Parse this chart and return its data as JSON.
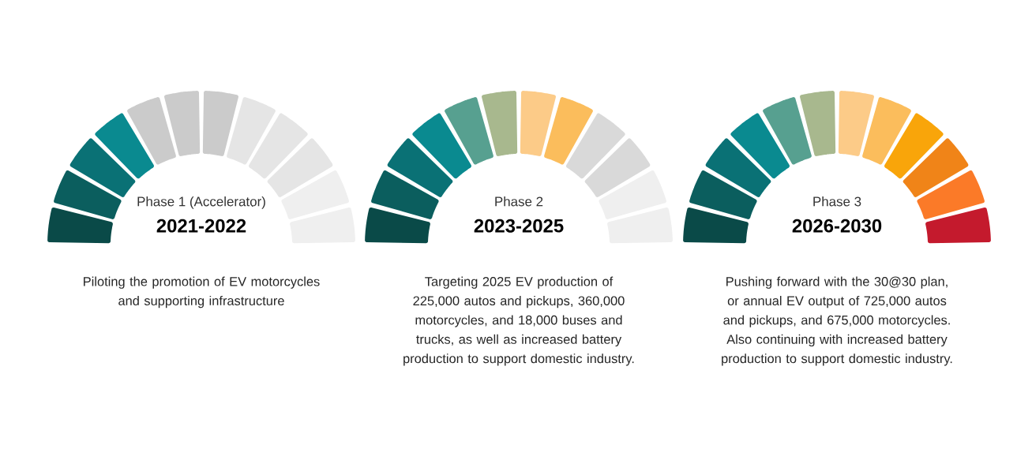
{
  "chart_data": [
    {
      "type": "donut",
      "title": "Phase 1 (Accelerator)",
      "subtitle": "2021-2022",
      "categories": [
        null,
        null,
        null,
        null,
        null,
        null,
        null,
        null,
        null,
        null,
        null,
        null
      ],
      "values": [
        8.33,
        8.33,
        8.33,
        8.33,
        8.33,
        8.33,
        8.33,
        8.33,
        8.33,
        8.33,
        8.33,
        8.33
      ],
      "colors": [
        "#0a4a48",
        "#0b5e5e",
        "#0a7175",
        "#0a8a90",
        "#cbcbcb",
        "#cbcbcb",
        "#cbcbcb",
        "#e5e5e5",
        "#e5e5e5",
        "#e5e5e5",
        "#efefef",
        "#efefef"
      ],
      "annotations": [
        "Piloting the promotion of EV motorcycles and supporting infrastructure"
      ]
    },
    {
      "type": "donut",
      "title": "Phase 2",
      "subtitle": "2023-2025",
      "categories": [
        null,
        null,
        null,
        null,
        null,
        null,
        null,
        null,
        null,
        null,
        null,
        null
      ],
      "values": [
        8.33,
        8.33,
        8.33,
        8.33,
        8.33,
        8.33,
        8.33,
        8.33,
        8.33,
        8.33,
        8.33,
        8.33
      ],
      "colors": [
        "#0a4a48",
        "#0b5e5e",
        "#0a7175",
        "#0a8a90",
        "#57a090",
        "#a8b88e",
        "#fccb88",
        "#fbbd5c",
        "#d9d9d9",
        "#d9d9d9",
        "#efefef",
        "#efefef"
      ],
      "annotations": [
        "Targeting 2025 EV production of 225,000 autos and pickups, 360,000 motorcycles, and 18,000 buses and trucks, as well as increased battery production to support domestic industry."
      ]
    },
    {
      "type": "donut",
      "title": "Phase 3",
      "subtitle": "2026-2030",
      "categories": [
        null,
        null,
        null,
        null,
        null,
        null,
        null,
        null,
        null,
        null,
        null,
        null
      ],
      "values": [
        8.33,
        8.33,
        8.33,
        8.33,
        8.33,
        8.33,
        8.33,
        8.33,
        8.33,
        8.33,
        8.33,
        8.33
      ],
      "colors": [
        "#0a4a48",
        "#0b5e5e",
        "#0a7175",
        "#0a8a90",
        "#57a090",
        "#a8b88e",
        "#fccb88",
        "#fbbd5c",
        "#f9a50a",
        "#f08418",
        "#fb7a28",
        "#c41a2d"
      ],
      "annotations": [
        "Pushing forward with the 30@30 plan, or annual EV output of 725,000 autos and pickups, and 675,000 motorcycles. Also continuing with increased battery production to support domestic industry."
      ]
    }
  ]
}
